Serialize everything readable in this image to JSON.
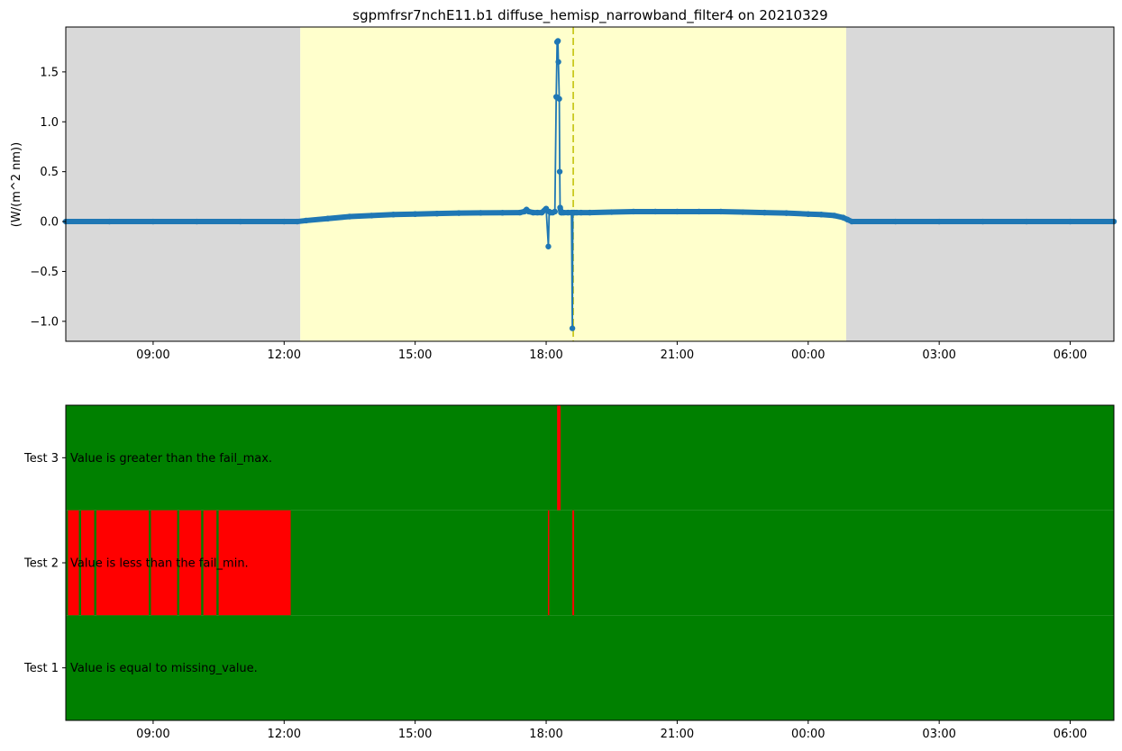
{
  "chart_data": [
    {
      "type": "line",
      "title": "sgpmfrsr7nchE11.b1 diffuse_hemisp_narrowband_filter4 on 20210329",
      "ylabel": "(W/(m^2 nm))",
      "xlabel": "",
      "x_unit": "hours since 00:00 on the first day shown",
      "xlim": [
        7.0,
        31.0
      ],
      "ylim": [
        -1.2,
        1.95
      ],
      "x_ticks": [
        {
          "value": 9,
          "label": "09:00"
        },
        {
          "value": 12,
          "label": "12:00"
        },
        {
          "value": 15,
          "label": "15:00"
        },
        {
          "value": 18,
          "label": "18:00"
        },
        {
          "value": 21,
          "label": "21:00"
        },
        {
          "value": 24,
          "label": "00:00"
        },
        {
          "value": 27,
          "label": "03:00"
        },
        {
          "value": 30,
          "label": "06:00"
        }
      ],
      "y_ticks": [
        {
          "value": 1.5,
          "label": "1.5"
        },
        {
          "value": 1.0,
          "label": "1.0"
        },
        {
          "value": 0.5,
          "label": "0.5"
        },
        {
          "value": 0.0,
          "label": "0.0"
        },
        {
          "value": -0.5,
          "label": "−0.5"
        },
        {
          "value": -1.0,
          "label": "−1.0"
        }
      ],
      "regions": [
        {
          "start": 7.0,
          "end": 12.37,
          "color": "#d9d9d9"
        },
        {
          "start": 12.37,
          "end": 24.87,
          "color": "#ffffcc"
        },
        {
          "start": 24.87,
          "end": 31.0,
          "color": "#d9d9d9"
        }
      ],
      "vline": {
        "x": 18.62,
        "color": "#bfbf00"
      },
      "series_color": "#1f77b4",
      "x": [
        7.0,
        8.0,
        9.0,
        10.0,
        11.0,
        12.0,
        12.3,
        12.5,
        13.0,
        13.5,
        14.0,
        14.5,
        15.0,
        15.5,
        16.0,
        16.5,
        17.0,
        17.4,
        17.5,
        17.55,
        17.6,
        17.7,
        17.8,
        17.9,
        18.0,
        18.05,
        18.07,
        18.1,
        18.15,
        18.2,
        18.23,
        18.25,
        18.27,
        18.28,
        18.3,
        18.31,
        18.32,
        18.34,
        18.36,
        18.4,
        18.5,
        18.58,
        18.6,
        18.61,
        18.63,
        18.65,
        18.7,
        18.8,
        19.0,
        19.5,
        20.0,
        20.5,
        21.0,
        21.5,
        22.0,
        22.5,
        23.0,
        23.5,
        24.0,
        24.3,
        24.6,
        24.8,
        24.9,
        25.0,
        26.0,
        27.0,
        28.0,
        29.0,
        30.0,
        31.0
      ],
      "values": [
        0.0,
        0.0,
        0.0,
        0.0,
        0.0,
        0.0,
        0.0,
        0.01,
        0.03,
        0.05,
        0.06,
        0.07,
        0.075,
        0.08,
        0.085,
        0.087,
        0.088,
        0.09,
        0.1,
        0.12,
        0.1,
        0.09,
        0.09,
        0.09,
        0.13,
        -0.25,
        0.1,
        0.09,
        0.09,
        0.1,
        1.25,
        1.8,
        1.81,
        1.6,
        1.23,
        0.5,
        0.14,
        0.09,
        0.09,
        0.09,
        0.09,
        0.09,
        -1.07,
        0.09,
        0.09,
        0.09,
        0.09,
        0.09,
        0.09,
        0.095,
        0.1,
        0.1,
        0.1,
        0.1,
        0.1,
        0.095,
        0.09,
        0.085,
        0.075,
        0.07,
        0.06,
        0.04,
        0.02,
        0.0,
        0.0,
        0.0,
        0.0,
        0.0,
        0.0,
        0.0
      ]
    },
    {
      "type": "heatmap",
      "xlim": [
        7.0,
        31.0
      ],
      "x_ticks": [
        {
          "value": 9,
          "label": "09:00"
        },
        {
          "value": 12,
          "label": "12:00"
        },
        {
          "value": 15,
          "label": "15:00"
        },
        {
          "value": 18,
          "label": "18:00"
        },
        {
          "value": 21,
          "label": "21:00"
        },
        {
          "value": 24,
          "label": "00:00"
        },
        {
          "value": 27,
          "label": "03:00"
        },
        {
          "value": 30,
          "label": "06:00"
        }
      ],
      "pass_color": "#008000",
      "fail_color": "#ff0000",
      "rows": [
        {
          "name": "Test 3",
          "description": "Value is greater than the fail_max.",
          "fail_intervals": [
            [
              18.25,
              18.33
            ]
          ]
        },
        {
          "name": "Test 2",
          "description": "Value is less than the fail_min.",
          "fail_intervals": [
            [
              7.05,
              7.3
            ],
            [
              7.35,
              7.65
            ],
            [
              7.7,
              8.9
            ],
            [
              8.95,
              9.55
            ],
            [
              9.6,
              10.1
            ],
            [
              10.15,
              10.45
            ],
            [
              10.5,
              12.15
            ],
            [
              18.04,
              18.07
            ],
            [
              18.6,
              18.64
            ]
          ]
        },
        {
          "name": "Test 1",
          "description": "Value is equal to missing_value.",
          "fail_intervals": []
        }
      ]
    }
  ]
}
